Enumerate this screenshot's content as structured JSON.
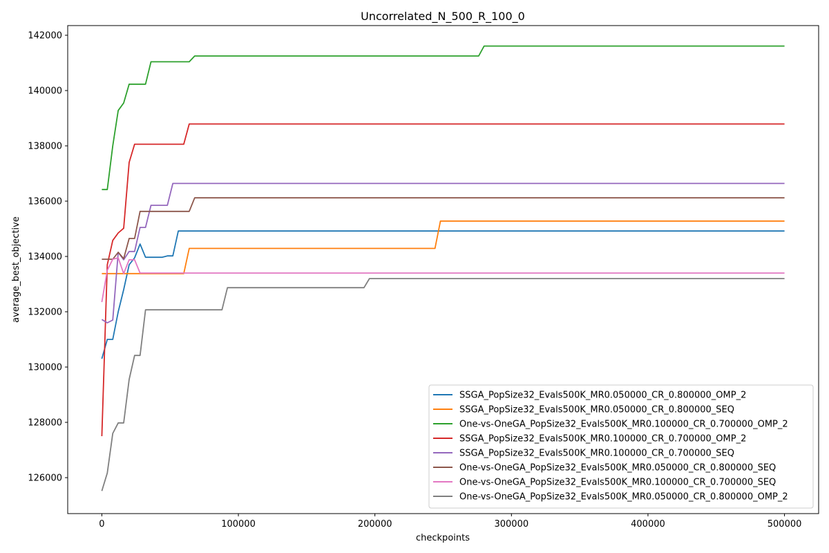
{
  "chart_data": {
    "type": "line",
    "title": "Uncorrelated_N_500_R_100_0",
    "xlabel": "checkpoints",
    "ylabel": "average_best_objective",
    "xlim": [
      -25000,
      525000
    ],
    "ylim": [
      124700,
      142350
    ],
    "xticks": [
      0,
      100000,
      200000,
      300000,
      400000,
      500000
    ],
    "xtick_labels": [
      "0",
      "100000",
      "200000",
      "300000",
      "400000",
      "500000"
    ],
    "yticks": [
      126000,
      128000,
      130000,
      132000,
      134000,
      136000,
      138000,
      140000,
      142000
    ],
    "ytick_labels": [
      "126000",
      "128000",
      "130000",
      "132000",
      "134000",
      "136000",
      "138000",
      "140000",
      "142000"
    ],
    "grid": false,
    "legend_position": "lower-right",
    "series": [
      {
        "name": "SSGA_PopSize32_Evals500K_MR0.050000_CR_0.800000_OMP_2",
        "color": "#1f77b4",
        "x": [
          0,
          4000,
          8000,
          12000,
          16000,
          20000,
          24000,
          28000,
          32000,
          44000,
          48000,
          52000,
          56000,
          500000
        ],
        "y": [
          130300,
          131000,
          131000,
          132000,
          132800,
          133700,
          133950,
          134450,
          133970,
          133970,
          134020,
          134020,
          134920,
          134920
        ]
      },
      {
        "name": "SSGA_PopSize32_Evals500K_MR0.050000_CR_0.800000_SEQ",
        "color": "#ff7f0e",
        "x": [
          0,
          60000,
          64000,
          244000,
          248000,
          500000
        ],
        "y": [
          133380,
          133380,
          134290,
          134290,
          135280,
          135280
        ]
      },
      {
        "name": "One-vs-OneGA_PopSize32_Evals500K_MR0.100000_CR_0.700000_OMP_2",
        "color": "#2ca02c",
        "x": [
          0,
          4000,
          8000,
          12000,
          16000,
          20000,
          32000,
          36000,
          64000,
          68000,
          276000,
          280000,
          500000
        ],
        "y": [
          136420,
          136420,
          138000,
          139280,
          139550,
          140230,
          140230,
          141040,
          141040,
          141250,
          141250,
          141610,
          141610
        ]
      },
      {
        "name": "SSGA_PopSize32_Evals500K_MR0.100000_CR_0.700000_OMP_2",
        "color": "#d62728",
        "x": [
          0,
          4000,
          8000,
          12000,
          16000,
          20000,
          24000,
          60000,
          64000,
          500000
        ],
        "y": [
          127500,
          133700,
          134580,
          134850,
          135020,
          137400,
          138060,
          138060,
          138790,
          138790
        ]
      },
      {
        "name": "SSGA_PopSize32_Evals500K_MR0.100000_CR_0.700000_SEQ",
        "color": "#9467bd",
        "x": [
          0,
          4000,
          8000,
          12000,
          16000,
          20000,
          24000,
          28000,
          32000,
          36000,
          48000,
          52000,
          500000
        ],
        "y": [
          131720,
          131600,
          131700,
          134150,
          133880,
          134180,
          134180,
          135050,
          135050,
          135850,
          135850,
          136640,
          136640
        ]
      },
      {
        "name": "One-vs-OneGA_PopSize32_Evals500K_MR0.050000_CR_0.800000_SEQ",
        "color": "#8c564b",
        "x": [
          0,
          8000,
          12000,
          16000,
          20000,
          24000,
          28000,
          64000,
          68000,
          500000
        ],
        "y": [
          133900,
          133900,
          134150,
          133920,
          134650,
          134650,
          135630,
          135630,
          136120,
          136120
        ]
      },
      {
        "name": "One-vs-OneGA_PopSize32_Evals500K_MR0.100000_CR_0.700000_SEQ",
        "color": "#e377c2",
        "x": [
          0,
          4000,
          8000,
          12000,
          16000,
          20000,
          24000,
          28000,
          500000
        ],
        "y": [
          132350,
          133500,
          133900,
          133950,
          133380,
          133880,
          133880,
          133400,
          133400
        ]
      },
      {
        "name": "One-vs-OneGA_PopSize32_Evals500K_MR0.050000_CR_0.800000_OMP_2",
        "color": "#7f7f7f",
        "x": [
          0,
          4000,
          8000,
          12000,
          16000,
          20000,
          24000,
          28000,
          32000,
          88000,
          92000,
          192000,
          196000,
          500000
        ],
        "y": [
          125520,
          126170,
          127600,
          127980,
          127980,
          129550,
          130420,
          130420,
          132070,
          132070,
          132870,
          132870,
          133200,
          133200
        ]
      }
    ]
  }
}
